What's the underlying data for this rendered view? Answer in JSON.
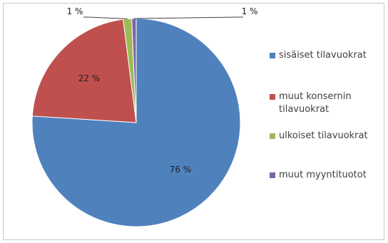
{
  "chart_data": {
    "type": "pie",
    "title": "",
    "slices": [
      {
        "name": "sisäiset tilavuokrat",
        "value": 76,
        "label": "76 %",
        "color": "#4F81BD"
      },
      {
        "name": "muut konsernin tilavuokrat",
        "value": 22,
        "label": "22 %",
        "color": "#C0504D"
      },
      {
        "name": "ulkoiset tilavuokrat",
        "value": 1.3,
        "label": "1 %",
        "color": "#9BBB59"
      },
      {
        "name": "muut myyntituotot",
        "value": 0.7,
        "label": "1 %",
        "color": "#8064A2"
      }
    ],
    "legend_position": "right"
  },
  "legend": {
    "items": [
      {
        "label": "sisäiset tilavuokrat"
      },
      {
        "label": "muut konsernin tilavuokrat"
      },
      {
        "label": "ulkoiset tilavuokrat"
      },
      {
        "label": "muut myyntituotot"
      }
    ]
  }
}
